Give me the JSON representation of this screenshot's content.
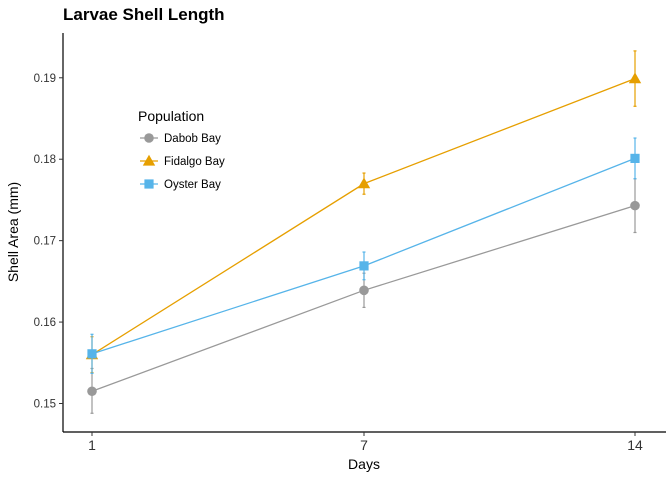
{
  "chart_data": {
    "type": "line",
    "title": "Larvae Shell Length",
    "xlabel": "Days",
    "ylabel": "Shell Area (mm)",
    "x": [
      1,
      7,
      14
    ],
    "x_ticks": [
      "1",
      "7",
      "14"
    ],
    "ylim": [
      0.1465,
      0.1955
    ],
    "y_ticks": [
      0.15,
      0.16,
      0.17,
      0.18,
      0.19
    ],
    "y_tick_labels": [
      "0.15",
      "0.16",
      "0.17",
      "0.18",
      "0.19"
    ],
    "grid": false,
    "legend": {
      "title": "Population",
      "placement": "top-left"
    },
    "series": [
      {
        "name": "Dabob Bay",
        "color": "#999999",
        "marker": "circle",
        "points": [
          {
            "x": 1,
            "y": 0.1515,
            "err_low": 0.1488,
            "err_high": 0.1543
          },
          {
            "x": 7,
            "y": 0.1639,
            "err_low": 0.1618,
            "err_high": 0.166
          },
          {
            "x": 14,
            "y": 0.1743,
            "err_low": 0.171,
            "err_high": 0.1776
          }
        ]
      },
      {
        "name": "Fidalgo Bay",
        "color": "#E69F00",
        "marker": "triangle",
        "points": [
          {
            "x": 1,
            "y": 0.156,
            "err_low": 0.1538,
            "err_high": 0.1582
          },
          {
            "x": 7,
            "y": 0.177,
            "err_low": 0.1757,
            "err_high": 0.1783
          },
          {
            "x": 14,
            "y": 0.1899,
            "err_low": 0.1865,
            "err_high": 0.1933
          }
        ]
      },
      {
        "name": "Oyster Bay",
        "color": "#56B4E9",
        "marker": "square",
        "points": [
          {
            "x": 1,
            "y": 0.1561,
            "err_low": 0.1537,
            "err_high": 0.1585
          },
          {
            "x": 7,
            "y": 0.1669,
            "err_low": 0.1652,
            "err_high": 0.1686
          },
          {
            "x": 14,
            "y": 0.1801,
            "err_low": 0.1776,
            "err_high": 0.1826
          }
        ]
      }
    ]
  }
}
